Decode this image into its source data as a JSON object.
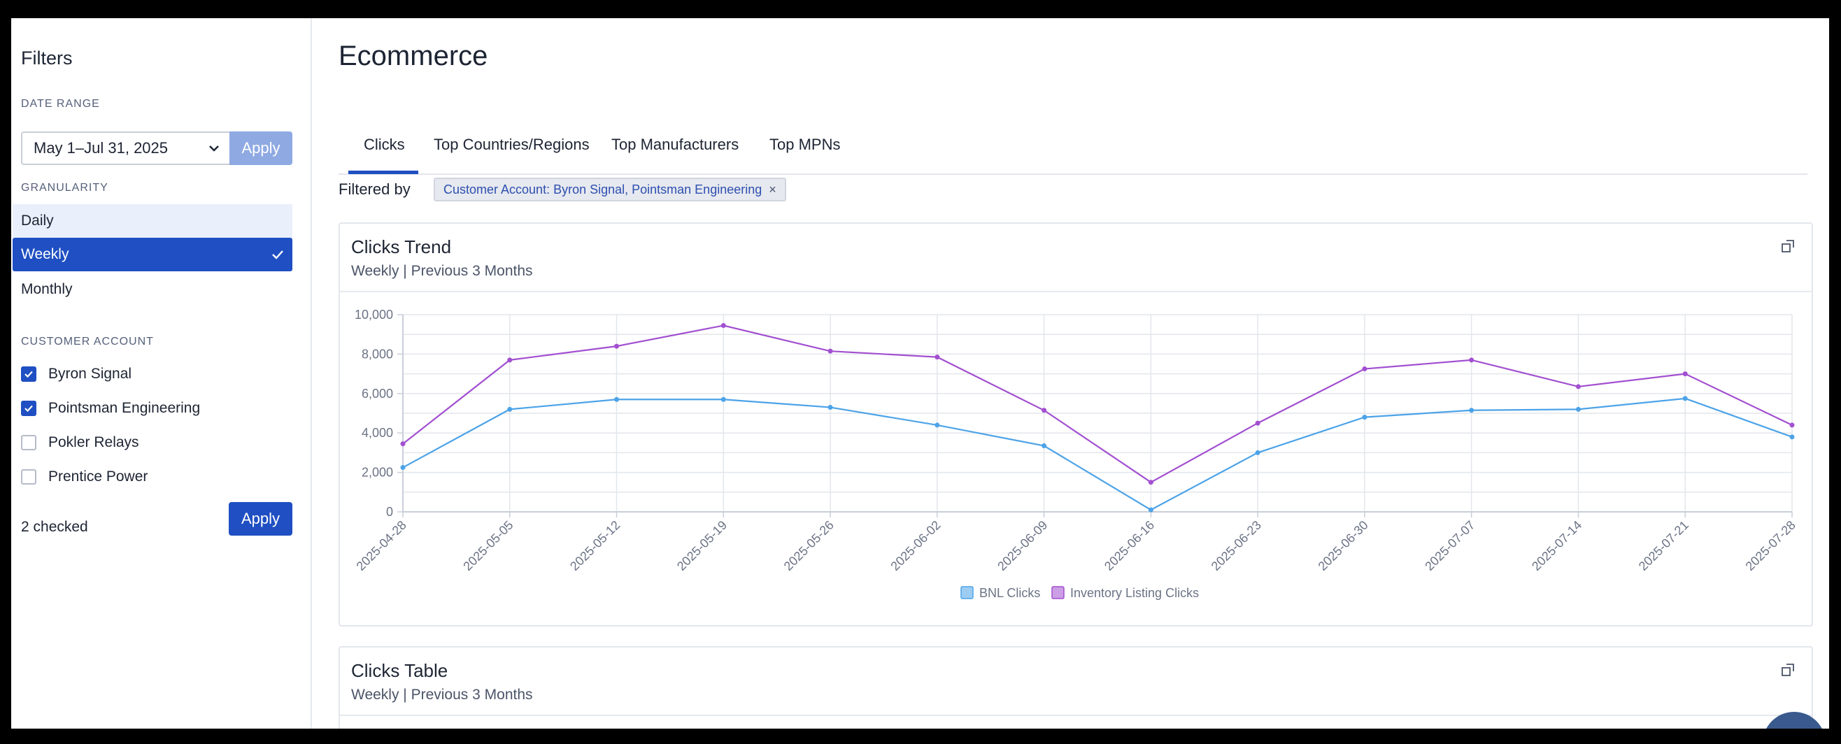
{
  "sidebar": {
    "title": "Filters",
    "date_range": {
      "label": "DATE RANGE",
      "value": "May 1–Jul 31, 2025",
      "apply_label": "Apply"
    },
    "granularity": {
      "label": "GRANULARITY",
      "options": [
        {
          "label": "Daily",
          "state": "hover"
        },
        {
          "label": "Weekly",
          "state": "selected"
        },
        {
          "label": "Monthly",
          "state": "normal"
        }
      ]
    },
    "customer_account": {
      "label": "CUSTOMER ACCOUNT",
      "options": [
        {
          "label": "Byron Signal",
          "checked": true
        },
        {
          "label": "Pointsman Engineering",
          "checked": true
        },
        {
          "label": "Pokler Relays",
          "checked": false
        },
        {
          "label": "Prentice Power",
          "checked": false
        }
      ],
      "checked_count": "2 checked",
      "apply_label": "Apply"
    }
  },
  "main": {
    "title": "Ecommerce",
    "tabs": [
      {
        "label": "Clicks",
        "active": true
      },
      {
        "label": "Top Countries/Regions",
        "active": false
      },
      {
        "label": "Top Manufacturers",
        "active": false
      },
      {
        "label": "Top MPNs",
        "active": false
      }
    ],
    "filtered_by_label": "Filtered by",
    "filter_chip": "Customer Account: Byron Signal, Pointsman Engineering",
    "filter_chip_close": "×",
    "trend_card": {
      "title": "Clicks Trend",
      "subtitle": "Weekly | Previous 3 Months"
    },
    "table_card": {
      "title": "Clicks Table",
      "subtitle": "Weekly | Previous 3 Months"
    }
  },
  "colors": {
    "accent": "#1f4fc2",
    "series_bnl": "#4ca3e8",
    "series_inventory": "#a24fd0"
  },
  "chart_data": {
    "type": "line",
    "title": "Clicks Trend",
    "x": [
      "2025-04-28",
      "2025-05-05",
      "2025-05-12",
      "2025-05-19",
      "2025-05-26",
      "2025-06-02",
      "2025-06-09",
      "2025-06-16",
      "2025-06-23",
      "2025-06-30",
      "2025-07-07",
      "2025-07-14",
      "2025-07-21",
      "2025-07-28"
    ],
    "yticks": [
      "0",
      "2,000",
      "4,000",
      "6,000",
      "8,000",
      "10,000"
    ],
    "ylim": [
      0,
      10000
    ],
    "grid": true,
    "legend_position": "bottom-center",
    "series": [
      {
        "name": "BNL Clicks",
        "color": "#4ca3e8",
        "values": [
          2250,
          5200,
          5700,
          5700,
          5300,
          4400,
          3350,
          100,
          3000,
          4800,
          5150,
          5200,
          5750,
          3800
        ]
      },
      {
        "name": "Inventory Listing Clicks",
        "color": "#a24fd0",
        "values": [
          3450,
          7700,
          8400,
          9450,
          8150,
          7850,
          5150,
          1500,
          4500,
          7250,
          7700,
          6350,
          7000,
          4400
        ]
      }
    ]
  }
}
